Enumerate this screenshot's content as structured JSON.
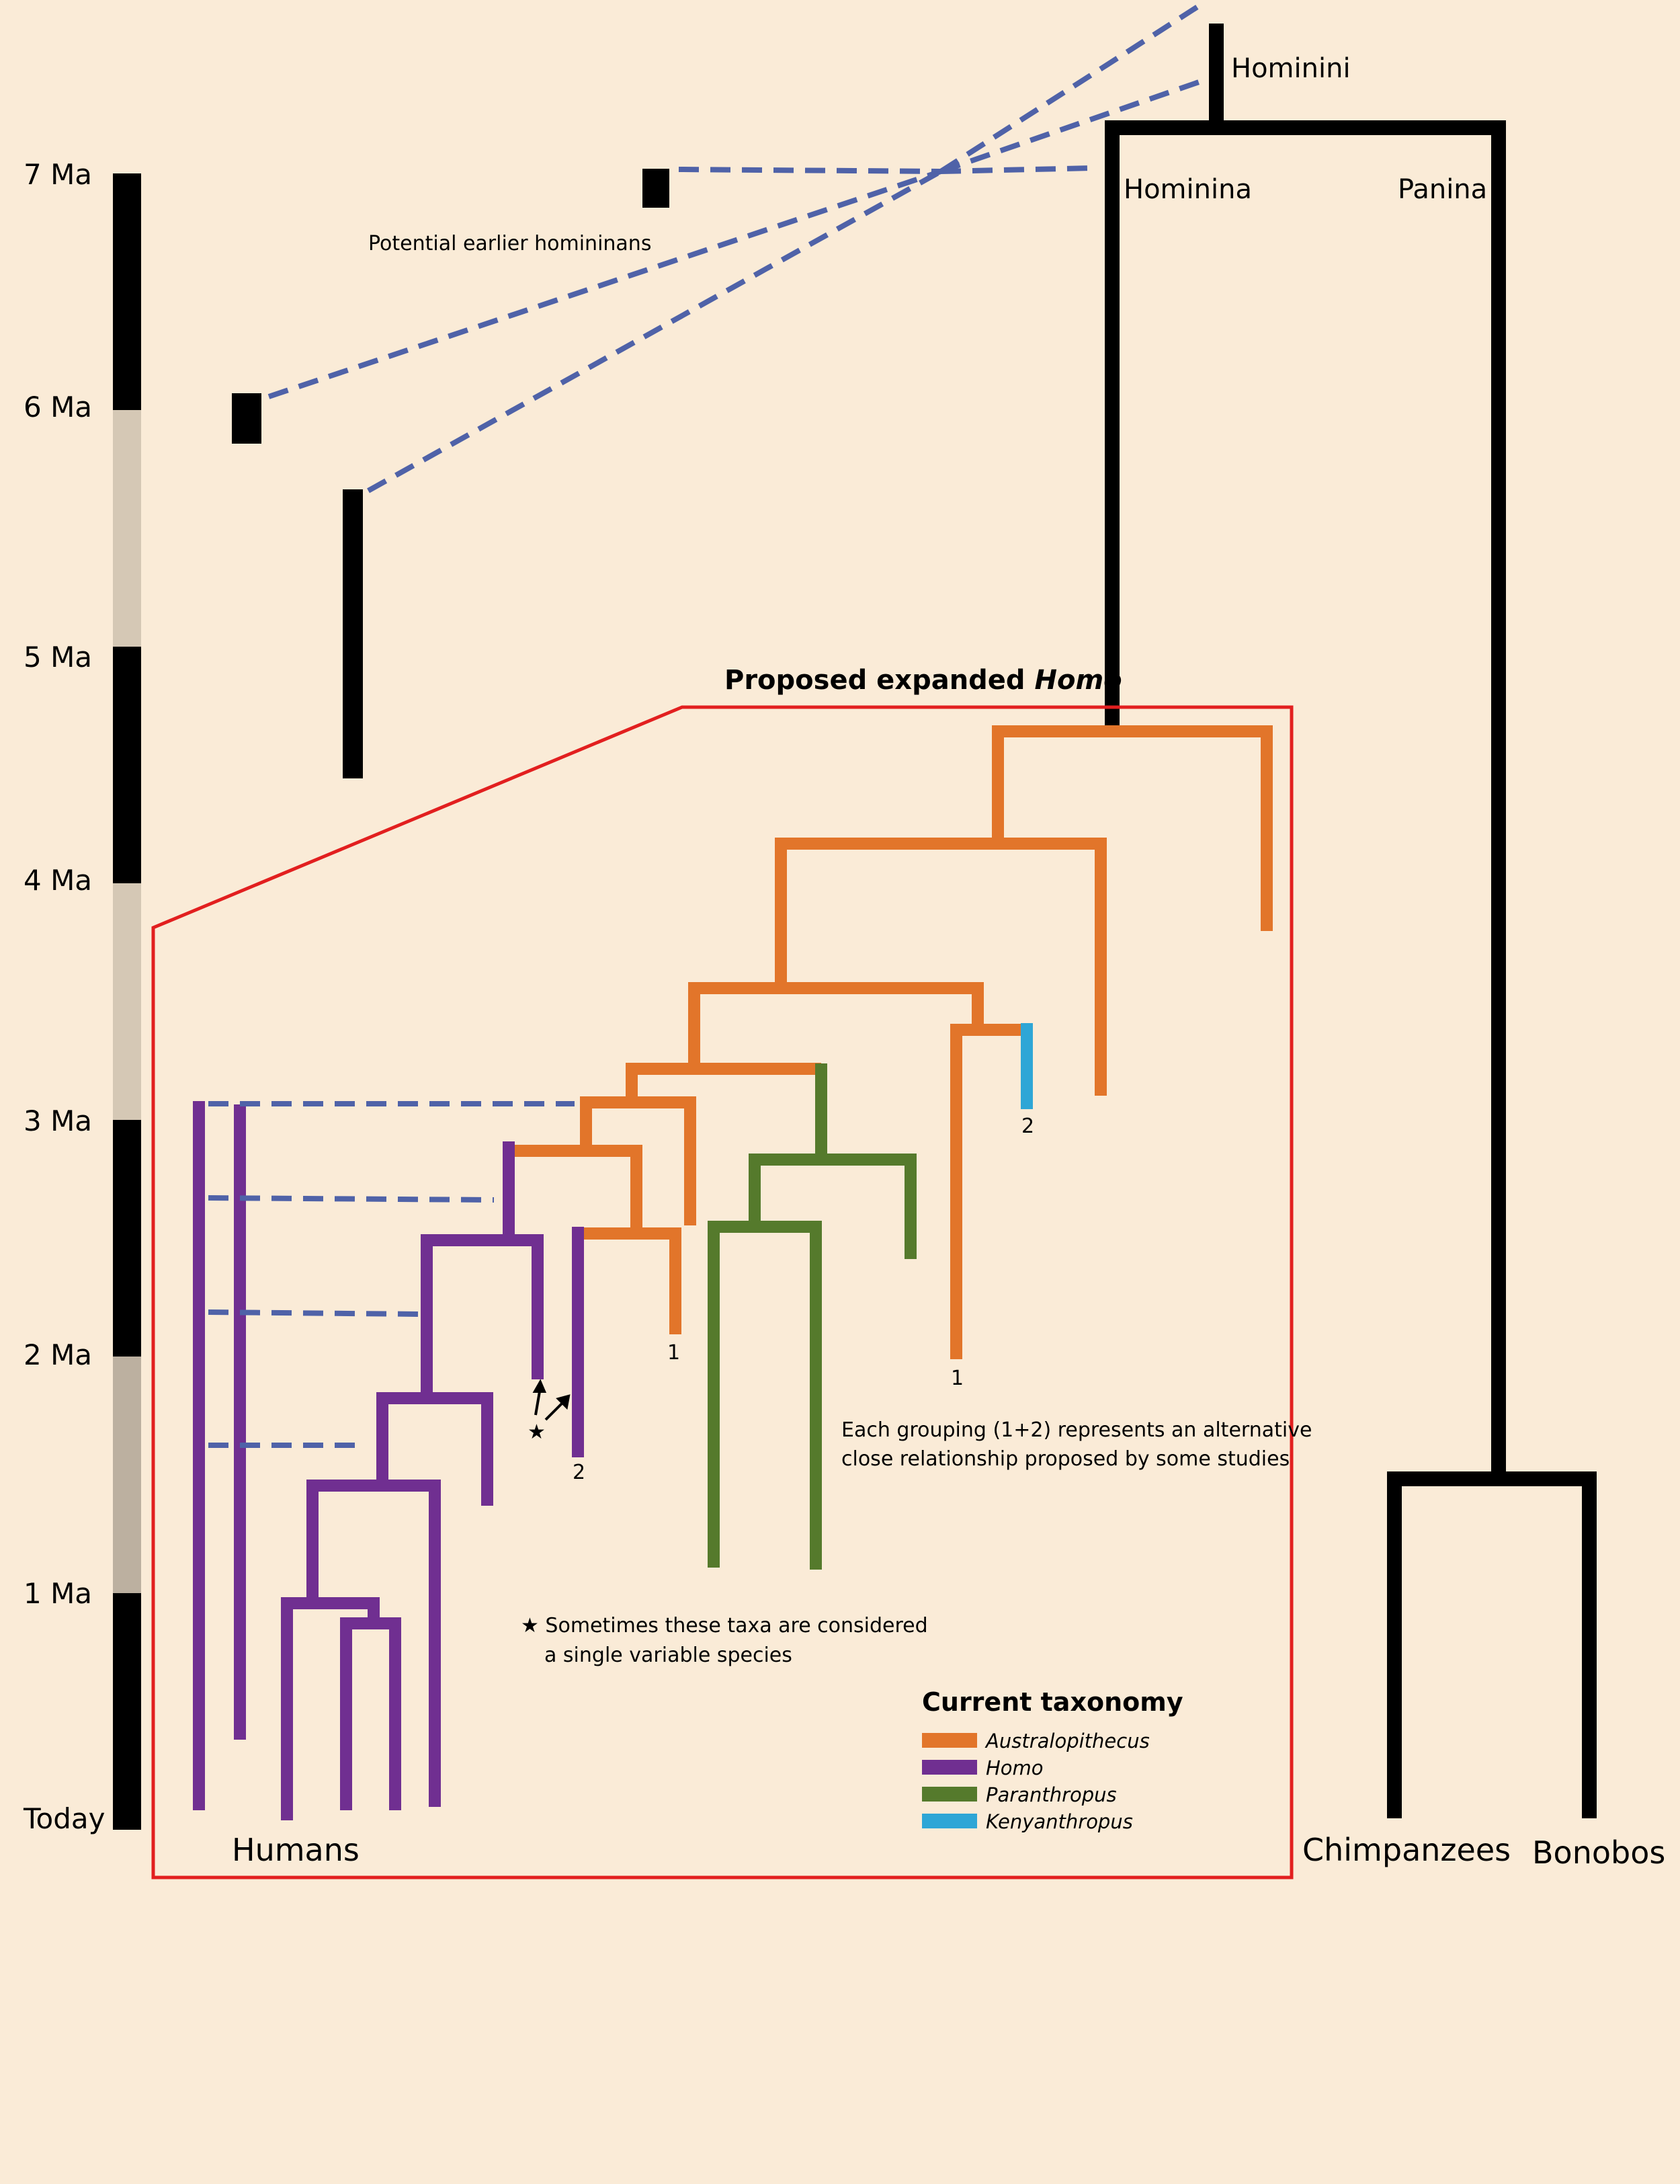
{
  "time_axis": {
    "ticks": [
      "7 Ma",
      "6 Ma",
      "5 Ma",
      "4 Ma",
      "3 Ma",
      "2 Ma",
      "1 Ma",
      "Today"
    ],
    "bar_colors": [
      "#000000",
      "#d5c8b5",
      "#000000",
      "#d5c8b5",
      "#000000",
      "#bcb0a0",
      "#000000"
    ]
  },
  "labels": {
    "hominini": "Hominini",
    "hominina": "Hominina",
    "panina": "Panina",
    "potential_earlier": "Potential earlier homininans",
    "humans": "Humans",
    "chimpanzees": "Chimpanzees",
    "bonobos": "Bonobos"
  },
  "expanded_homo": {
    "title_prefix": "Proposed expanded ",
    "title_italic": "Homo"
  },
  "group_marks": {
    "one_a": "1",
    "one_b": "1",
    "two_a": "2",
    "two_b": "2",
    "star": "★"
  },
  "notes": {
    "grouping_line1": "Each grouping (1+2) represents an alternative",
    "grouping_line2": "close relationship proposed by some studies",
    "star_line1": "★ Sometimes these taxa are considered",
    "star_line2": "a single variable species"
  },
  "legend": {
    "title": "Current taxonomy",
    "items": [
      {
        "label": "Australopithecus",
        "color": "#e2752a"
      },
      {
        "label": "Homo",
        "color": "#702f91"
      },
      {
        "label": "Paranthropus",
        "color": "#557a2c"
      },
      {
        "label": "Kenyanthropus",
        "color": "#2ea6d6"
      }
    ]
  },
  "colors": {
    "background": "#faebd7",
    "australopithecus": "#e2752a",
    "homo": "#702f91",
    "paranthropus": "#557a2c",
    "kenyanthropus": "#2ea6d6",
    "dashed_links": "#4f62a8",
    "expanded_box": "#e21f1f"
  }
}
